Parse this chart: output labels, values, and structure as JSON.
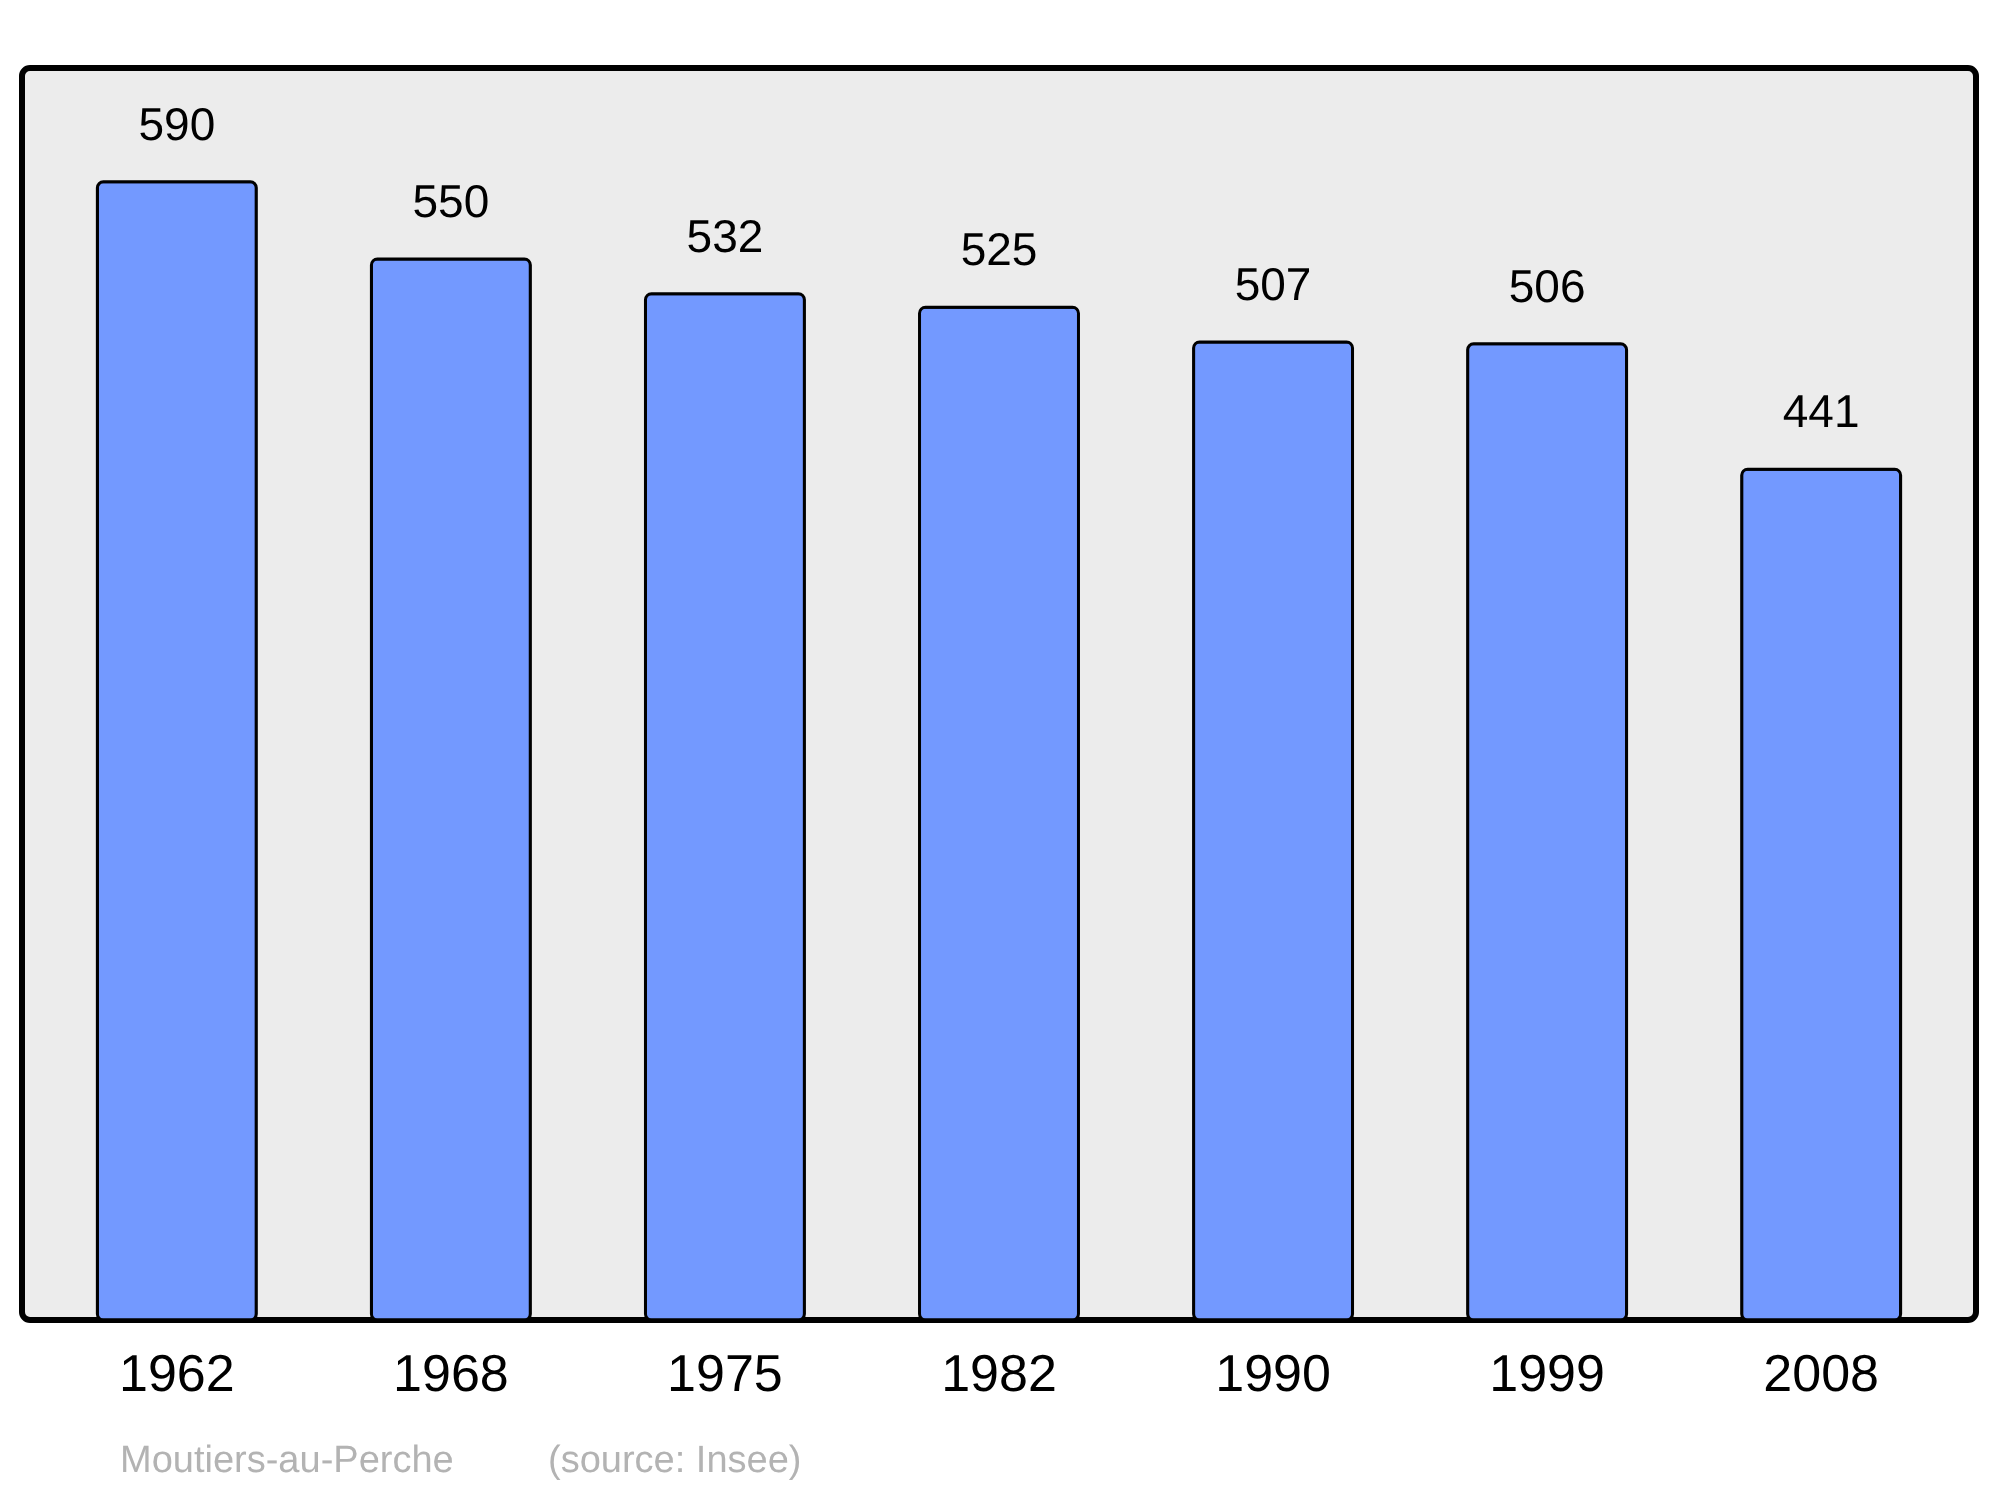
{
  "chart_data": {
    "type": "bar",
    "categories": [
      "1962",
      "1968",
      "1975",
      "1982",
      "1990",
      "1999",
      "2008"
    ],
    "values": [
      590,
      550,
      532,
      525,
      507,
      506,
      441
    ],
    "color": "#7399ff",
    "data_labels": true,
    "grid": false,
    "annotations": [
      "Moutiers-au-Perche",
      "(source: Insee)"
    ]
  }
}
